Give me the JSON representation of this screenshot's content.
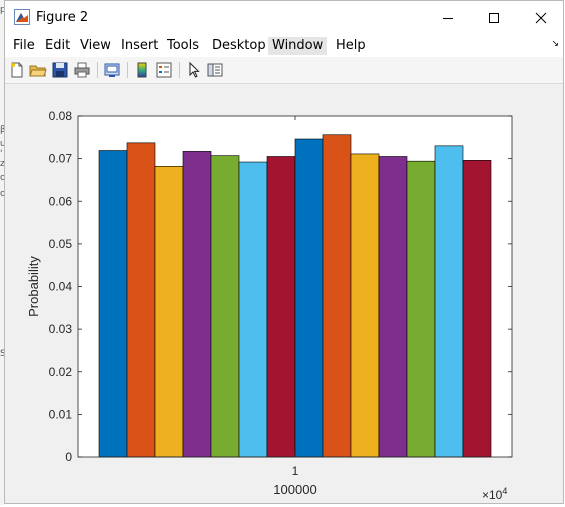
{
  "window": {
    "title": "Figure 2"
  },
  "menu": [
    "File",
    "Edit",
    "View",
    "Insert",
    "Tools",
    "Desktop",
    "Window",
    "Help"
  ],
  "toolbar_icons": [
    "new-figure-icon",
    "open-file-icon",
    "save-icon",
    "print-icon",
    "link-plot-icon",
    "colorbar-icon",
    "legend-icon",
    "edit-plot-arrow-icon",
    "property-inspector-icon"
  ],
  "background_fragments": [
    "p",
    "β",
    "u",
    "'",
    "z",
    "o",
    "o",
    "S"
  ],
  "chart_data": {
    "type": "bar",
    "categories": [
      "1"
    ],
    "xlabel": "100000",
    "ylabel": "Probability",
    "x_exponent": "×10",
    "x_exponent_power": "4",
    "ylim": [
      0,
      0.08
    ],
    "yticks": [
      "0",
      "0.01",
      "0.02",
      "0.03",
      "0.04",
      "0.05",
      "0.06",
      "0.07",
      "0.08"
    ],
    "grid": false,
    "series": [
      {
        "values": [
          0.0719
        ],
        "color": "#0072BD"
      },
      {
        "values": [
          0.0737
        ],
        "color": "#D95319"
      },
      {
        "values": [
          0.0682
        ],
        "color": "#EDB120"
      },
      {
        "values": [
          0.0717
        ],
        "color": "#7E2F8E"
      },
      {
        "values": [
          0.0707
        ],
        "color": "#77AC30"
      },
      {
        "values": [
          0.0692
        ],
        "color": "#4DBEEE"
      },
      {
        "values": [
          0.0705
        ],
        "color": "#A2142F"
      },
      {
        "values": [
          0.0746
        ],
        "color": "#0072BD"
      },
      {
        "values": [
          0.0756
        ],
        "color": "#D95319"
      },
      {
        "values": [
          0.0711
        ],
        "color": "#EDB120"
      },
      {
        "values": [
          0.0705
        ],
        "color": "#7E2F8E"
      },
      {
        "values": [
          0.0694
        ],
        "color": "#77AC30"
      },
      {
        "values": [
          0.073
        ],
        "color": "#4DBEEE"
      },
      {
        "values": [
          0.0696
        ],
        "color": "#A2142F"
      }
    ]
  }
}
